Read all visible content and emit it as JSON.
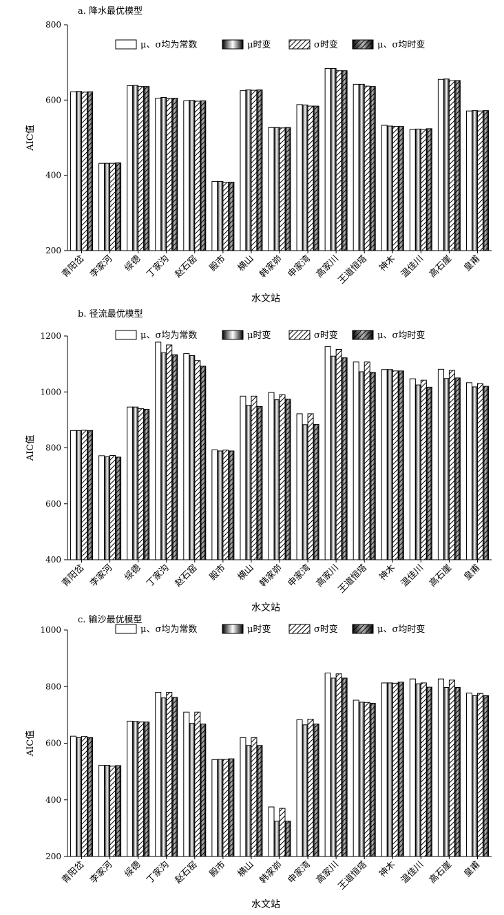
{
  "figure": {
    "x_axis_label": "水文站",
    "y_axis_label": "AIC值"
  },
  "legend_items": [
    {
      "id": "const",
      "label": "μ、σ均为常数",
      "pattern": "plain"
    },
    {
      "id": "mu",
      "label": "μ时变",
      "pattern": "gradient"
    },
    {
      "id": "sigma",
      "label": "σ时变",
      "pattern": "hatch"
    },
    {
      "id": "both",
      "label": "μ、σ均时变",
      "pattern": "gradient-hatch"
    }
  ],
  "chart_data": [
    {
      "type": "bar",
      "title": "a. 降水最优模型",
      "xlabel": "水文站",
      "ylabel": "AIC值",
      "ylim": [
        200,
        800
      ],
      "yticks": [
        200,
        400,
        600,
        800
      ],
      "grid": false,
      "legend_position": "top-right",
      "categories": [
        "青阳岔",
        "李家河",
        "绥德",
        "丁家沟",
        "赵石窑",
        "殿市",
        "横山",
        "韩家峁",
        "申家湾",
        "高家川",
        "王道恒塔",
        "神木",
        "温佳川",
        "高石崖",
        "皇甫"
      ],
      "series": [
        {
          "name": "μ、σ均为常数",
          "values": [
            622,
            432,
            638,
            605,
            598,
            384,
            625,
            527,
            588,
            684,
            642,
            533,
            522,
            655,
            571
          ]
        },
        {
          "name": "μ时变",
          "values": [
            623,
            432,
            639,
            607,
            599,
            384,
            627,
            527,
            587,
            684,
            642,
            531,
            523,
            656,
            572
          ]
        },
        {
          "name": "σ时变",
          "values": [
            621,
            432,
            636,
            604,
            597,
            381,
            626,
            526,
            584,
            678,
            637,
            530,
            522,
            651,
            571
          ]
        },
        {
          "name": "μ、σ均时变",
          "values": [
            622,
            433,
            636,
            605,
            598,
            382,
            627,
            527,
            584,
            678,
            636,
            530,
            524,
            652,
            572
          ]
        }
      ]
    },
    {
      "type": "bar",
      "title": "b. 径流最优模型",
      "xlabel": "水文站",
      "ylabel": "AIC值",
      "ylim": [
        400,
        1200
      ],
      "yticks": [
        400,
        600,
        800,
        1000,
        1200
      ],
      "grid": false,
      "legend_position": "top-right",
      "categories": [
        "青阳岔",
        "李家河",
        "绥德",
        "丁家沟",
        "赵石窑",
        "殿市",
        "横山",
        "韩家峁",
        "申家湾",
        "高家川",
        "王道恒塔",
        "神木",
        "温佳川",
        "高石崖",
        "皇甫"
      ],
      "series": [
        {
          "name": "μ、σ均为常数",
          "values": [
            862,
            772,
            946,
            1178,
            1137,
            793,
            985,
            998,
            922,
            1162,
            1107,
            1080,
            1047,
            1081,
            1033
          ]
        },
        {
          "name": "μ时变",
          "values": [
            862,
            768,
            946,
            1140,
            1130,
            789,
            952,
            972,
            883,
            1128,
            1072,
            1080,
            1025,
            1048,
            1018
          ]
        },
        {
          "name": "σ时变",
          "values": [
            863,
            773,
            940,
            1168,
            1112,
            792,
            985,
            990,
            922,
            1152,
            1107,
            1075,
            1042,
            1077,
            1030
          ]
        },
        {
          "name": "μ、σ均时变",
          "values": [
            862,
            767,
            938,
            1133,
            1092,
            789,
            948,
            974,
            884,
            1122,
            1070,
            1075,
            1017,
            1050,
            1020
          ]
        }
      ]
    },
    {
      "type": "bar",
      "title": "c. 输沙最优模型",
      "xlabel": "水文站",
      "ylabel": "AIC值",
      "ylim": [
        200,
        1000
      ],
      "yticks": [
        200,
        400,
        600,
        800,
        1000
      ],
      "grid": false,
      "legend_position": "top-right",
      "categories": [
        "青阳岔",
        "李家河",
        "绥德",
        "丁家沟",
        "赵石窑",
        "殿市",
        "横山",
        "韩家峁",
        "申家湾",
        "高家川",
        "王道恒塔",
        "神木",
        "温佳川",
        "高石崖",
        "皇甫"
      ],
      "series": [
        {
          "name": "μ、σ均为常数",
          "values": [
            625,
            522,
            678,
            780,
            710,
            542,
            620,
            375,
            683,
            848,
            752,
            813,
            827,
            827,
            777
          ]
        },
        {
          "name": "μ时变",
          "values": [
            620,
            522,
            677,
            760,
            670,
            543,
            592,
            325,
            665,
            830,
            745,
            813,
            810,
            797,
            768
          ]
        },
        {
          "name": "σ时变",
          "values": [
            624,
            519,
            675,
            780,
            710,
            543,
            620,
            370,
            685,
            845,
            744,
            812,
            813,
            823,
            776
          ]
        },
        {
          "name": "μ、σ均时变",
          "values": [
            620,
            521,
            675,
            762,
            668,
            545,
            592,
            325,
            668,
            830,
            741,
            816,
            798,
            797,
            768
          ]
        }
      ]
    }
  ]
}
